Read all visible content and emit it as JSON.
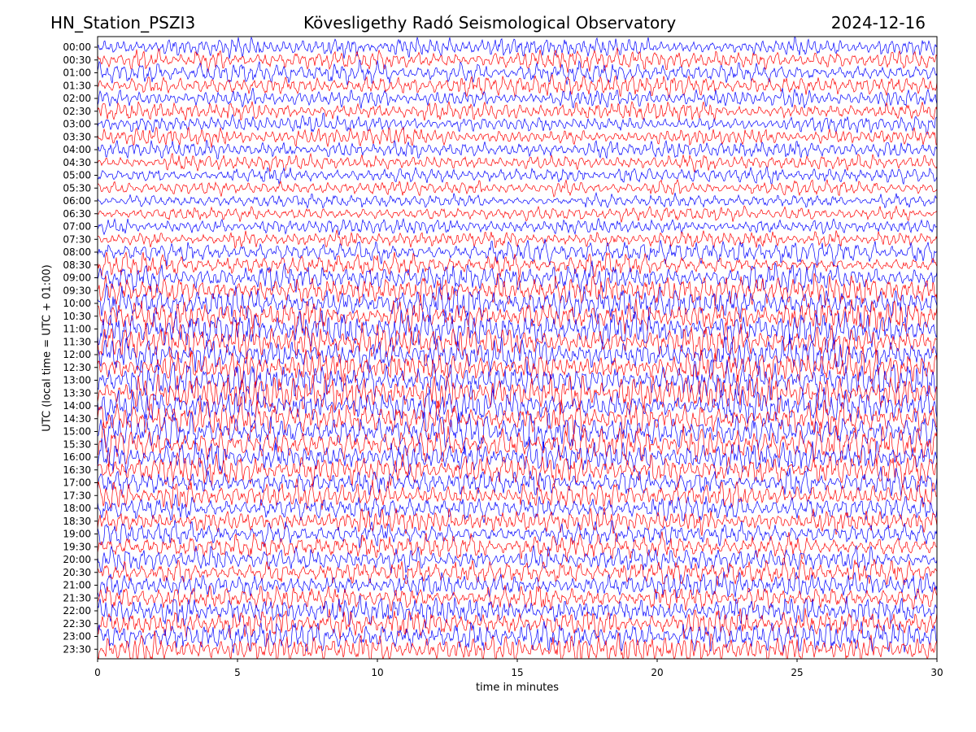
{
  "header": {
    "station": "HN_Station_PSZI3",
    "observatory": "Kövesligethy Radó Seismological Observatory",
    "date": "2024-12-16"
  },
  "chart_data": {
    "type": "line",
    "title": "Kövesligethy Radó Seismological Observatory",
    "xlabel": "time in minutes",
    "ylabel": "UTC (local time = UTC + 01:00)",
    "xlim": [
      0,
      30
    ],
    "x_ticks": [
      "0",
      "5",
      "10",
      "15",
      "20",
      "25",
      "30"
    ],
    "y_tick_labels": [
      "00:00",
      "00:30",
      "01:00",
      "01:30",
      "02:00",
      "02:30",
      "03:00",
      "03:30",
      "04:00",
      "04:30",
      "05:00",
      "05:30",
      "06:00",
      "06:30",
      "07:00",
      "07:30",
      "08:00",
      "08:30",
      "09:00",
      "09:30",
      "10:00",
      "10:30",
      "11:00",
      "11:30",
      "12:00",
      "12:30",
      "13:00",
      "13:30",
      "14:00",
      "14:30",
      "15:00",
      "15:30",
      "16:00",
      "16:30",
      "17:00",
      "17:30",
      "18:00",
      "18:30",
      "19:00",
      "19:30",
      "20:00",
      "20:30",
      "21:00",
      "21:30",
      "22:00",
      "22:30",
      "23:00",
      "23:30"
    ],
    "trace_colors": [
      "#0000ff",
      "#ff0000"
    ],
    "trace_amplitude_by_hour": [
      0.9,
      0.9,
      0.8,
      0.8,
      0.75,
      0.7,
      0.6,
      0.7,
      1.0,
      1.3,
      1.5,
      1.5,
      1.5,
      1.6,
      1.6,
      1.7,
      1.4,
      1.2,
      1.1,
      1.1,
      1.1,
      1.1,
      1.2,
      1.3
    ],
    "grid": false,
    "legend": "none"
  }
}
